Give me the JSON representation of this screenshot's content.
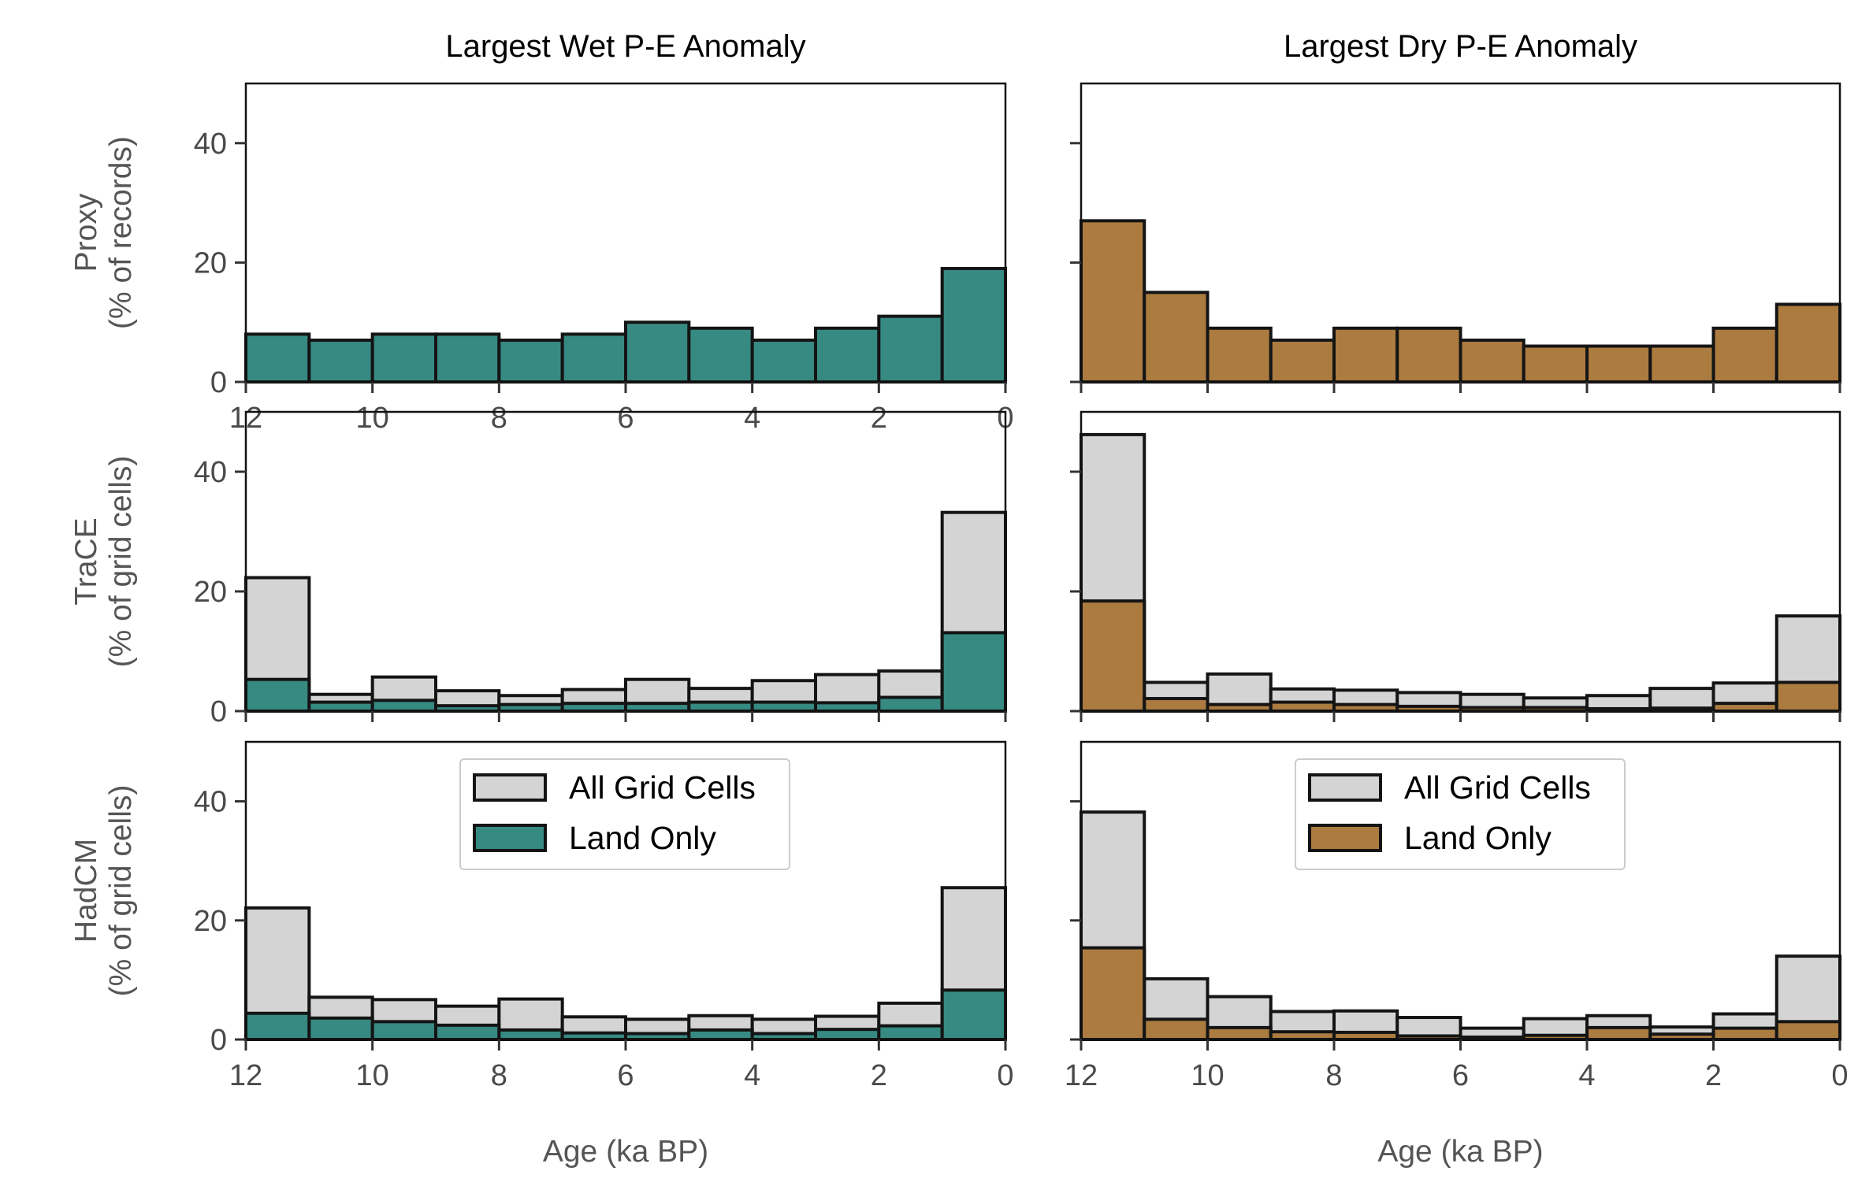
{
  "colors": {
    "wet": "#368a82",
    "dry": "#ab7b40",
    "all": "#d4d4d4",
    "edge": "#141414"
  },
  "legend": {
    "all_label": "All Grid Cells",
    "land_label": "Land Only"
  },
  "chart_data": [
    {
      "type": "bar",
      "column_title": "Largest Wet P-E Anomaly",
      "row_title": "Proxy",
      "ylabel": "(% of records)",
      "xlabel": "",
      "xlim": [
        12,
        0
      ],
      "ylim": [
        0,
        50
      ],
      "xticks": [
        "12",
        "10",
        "8",
        "6",
        "4",
        "2",
        "0"
      ],
      "yticks": [
        "0",
        "20",
        "40"
      ],
      "bin_edges": [
        12,
        11,
        10,
        9,
        8,
        7,
        6,
        5,
        4,
        3,
        2,
        1,
        0
      ],
      "series": [
        {
          "key": "land",
          "values": [
            8,
            7,
            8,
            8,
            7,
            8,
            10,
            9,
            7,
            9,
            11,
            19
          ]
        }
      ],
      "legend": false
    },
    {
      "type": "bar",
      "column_title": "Largest Dry P-E Anomaly",
      "row_title": "",
      "ylabel": "",
      "xlabel": "",
      "xlim": [
        12,
        0
      ],
      "ylim": [
        0,
        50
      ],
      "xticks": [
        "",
        "",
        "",
        "",
        "",
        "",
        ""
      ],
      "yticks": [
        "",
        "",
        ""
      ],
      "bin_edges": [
        12,
        11,
        10,
        9,
        8,
        7,
        6,
        5,
        4,
        3,
        2,
        1,
        0
      ],
      "series": [
        {
          "key": "land",
          "values": [
            27,
            15,
            9,
            7,
            9,
            9,
            7,
            6,
            6,
            6,
            9,
            13
          ]
        }
      ],
      "legend": false
    },
    {
      "type": "bar",
      "column_title": "",
      "row_title": "TraCE",
      "ylabel": "(% of grid cells)",
      "xlabel": "",
      "xlim": [
        12,
        0
      ],
      "ylim": [
        0,
        50
      ],
      "xticks": [
        "",
        "",
        "",
        "",
        "",
        "",
        ""
      ],
      "yticks": [
        "0",
        "20",
        "40"
      ],
      "bin_edges": [
        12,
        11,
        10,
        9,
        8,
        7,
        6,
        5,
        4,
        3,
        2,
        1,
        0
      ],
      "series": [
        {
          "key": "all",
          "values": [
            22.3,
            2.8,
            5.7,
            3.4,
            2.6,
            3.6,
            5.3,
            3.8,
            5.1,
            6.1,
            6.7,
            33.2
          ]
        },
        {
          "key": "land",
          "values": [
            5.3,
            1.5,
            1.8,
            0.9,
            1.1,
            1.3,
            1.3,
            1.5,
            1.5,
            1.4,
            2.3,
            13.1
          ]
        }
      ],
      "legend": false
    },
    {
      "type": "bar",
      "column_title": "",
      "row_title": "",
      "ylabel": "",
      "xlabel": "",
      "xlim": [
        12,
        0
      ],
      "ylim": [
        0,
        50
      ],
      "xticks": [
        "",
        "",
        "",
        "",
        "",
        "",
        ""
      ],
      "yticks": [
        "",
        "",
        ""
      ],
      "bin_edges": [
        12,
        11,
        10,
        9,
        8,
        7,
        6,
        5,
        4,
        3,
        2,
        1,
        0
      ],
      "series": [
        {
          "key": "all",
          "values": [
            46.2,
            4.8,
            6.2,
            3.7,
            3.5,
            3.1,
            2.8,
            2.2,
            2.6,
            3.8,
            4.7,
            15.9
          ]
        },
        {
          "key": "land",
          "values": [
            18.4,
            2.1,
            1.1,
            1.5,
            1.1,
            0.8,
            0.6,
            0.6,
            0.4,
            0.5,
            1.3,
            4.8
          ]
        }
      ],
      "legend": false
    },
    {
      "type": "bar",
      "column_title": "",
      "row_title": "HadCM",
      "ylabel": "(% of grid cells)",
      "xlabel": "Age (ka BP)",
      "xlim": [
        12,
        0
      ],
      "ylim": [
        0,
        50
      ],
      "xticks": [
        "12",
        "10",
        "8",
        "6",
        "4",
        "2",
        "0"
      ],
      "yticks": [
        "0",
        "20",
        "40"
      ],
      "bin_edges": [
        12,
        11,
        10,
        9,
        8,
        7,
        6,
        5,
        4,
        3,
        2,
        1,
        0
      ],
      "series": [
        {
          "key": "all",
          "values": [
            22.1,
            7.1,
            6.7,
            5.6,
            6.8,
            3.8,
            3.4,
            4.0,
            3.4,
            3.9,
            6.1,
            25.5
          ]
        },
        {
          "key": "land",
          "values": [
            4.4,
            3.6,
            3.0,
            2.4,
            1.6,
            1.1,
            1.0,
            1.6,
            1.0,
            1.7,
            2.3,
            8.3
          ]
        }
      ],
      "legend": true,
      "legend_position": "upper-center"
    },
    {
      "type": "bar",
      "column_title": "",
      "row_title": "",
      "ylabel": "",
      "xlabel": "Age (ka BP)",
      "xlim": [
        12,
        0
      ],
      "ylim": [
        0,
        50
      ],
      "xticks": [
        "12",
        "10",
        "8",
        "6",
        "4",
        "2",
        "0"
      ],
      "yticks": [
        "",
        "",
        ""
      ],
      "bin_edges": [
        12,
        11,
        10,
        9,
        8,
        7,
        6,
        5,
        4,
        3,
        2,
        1,
        0
      ],
      "series": [
        {
          "key": "all",
          "values": [
            38.2,
            10.2,
            7.2,
            4.7,
            4.8,
            3.7,
            1.9,
            3.5,
            4.0,
            2.1,
            4.3,
            14.0
          ]
        },
        {
          "key": "land",
          "values": [
            15.4,
            3.4,
            2.0,
            1.3,
            1.2,
            0.6,
            0.4,
            0.7,
            2.0,
            0.9,
            1.9,
            3.0
          ]
        }
      ],
      "legend": true,
      "legend_position": "upper-center"
    }
  ]
}
